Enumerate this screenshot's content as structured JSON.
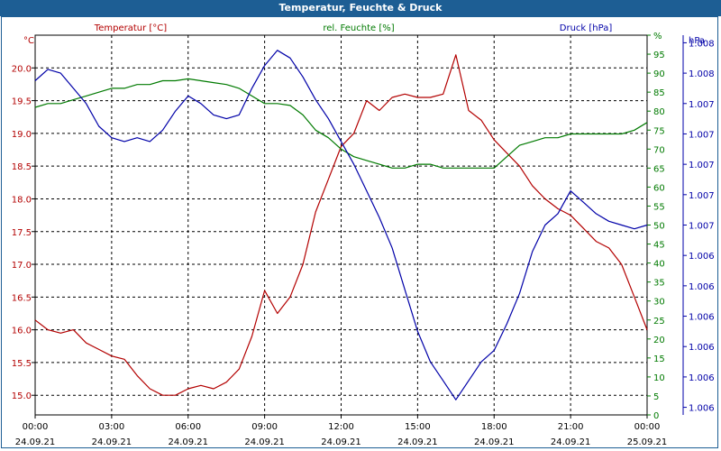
{
  "title": "Temperatur, Feuchte & Druck",
  "colors": {
    "temperature": "#b30000",
    "humidity": "#007a00",
    "pressure": "#0000a8",
    "titlebar": "#1d5e94"
  },
  "chart_data": {
    "type": "line",
    "title": "Temperatur, Feuchte & Druck",
    "x_ticks": [
      {
        "time": "00:00",
        "date": "24.09.21"
      },
      {
        "time": "03:00",
        "date": "24.09.21"
      },
      {
        "time": "06:00",
        "date": "24.09.21"
      },
      {
        "time": "09:00",
        "date": "24.09.21"
      },
      {
        "time": "12:00",
        "date": "24.09.21"
      },
      {
        "time": "15:00",
        "date": "24.09.21"
      },
      {
        "time": "18:00",
        "date": "24.09.21"
      },
      {
        "time": "21:00",
        "date": "24.09.21"
      },
      {
        "time": "00:00",
        "date": "25.09.21"
      }
    ],
    "xlim_hours": [
      0,
      24
    ],
    "grid": true,
    "axes": {
      "temperature": {
        "label": "Temperatur [°C]",
        "unit": "°C",
        "ylim": [
          14.7,
          20.5
        ],
        "ticks": [
          "15.0",
          "15.5",
          "16.0",
          "16.5",
          "17.0",
          "17.5",
          "18.0",
          "18.5",
          "19.0",
          "19.5",
          "20.0"
        ],
        "tick_values": [
          15.0,
          15.5,
          16.0,
          16.5,
          17.0,
          17.5,
          18.0,
          18.5,
          19.0,
          19.5,
          20.0
        ]
      },
      "humidity": {
        "label": "rel. Feuchte [%]",
        "unit": "%",
        "ylim": [
          0,
          100
        ],
        "ticks": [
          "0",
          "5",
          "10",
          "15",
          "20",
          "25",
          "30",
          "35",
          "40",
          "45",
          "50",
          "55",
          "60",
          "65",
          "70",
          "75",
          "80",
          "85",
          "90",
          "95",
          "%"
        ],
        "tick_values": [
          0,
          5,
          10,
          15,
          20,
          25,
          30,
          35,
          40,
          45,
          50,
          55,
          60,
          65,
          70,
          75,
          80,
          85,
          90,
          95,
          100
        ]
      },
      "pressure": {
        "label": "Druck [hPa]",
        "unit": "hPa",
        "ylim": [
          0,
          100
        ],
        "ticks": [
          "1.006",
          "1.006",
          "1.006",
          "1.006",
          "1.006",
          "1.006",
          "1.007",
          "1.007",
          "1.007",
          "1.007",
          "1.007",
          "1.008",
          "1.008",
          "1.008"
        ],
        "tick_values": [
          2.0,
          10.0,
          18.0,
          26.0,
          34.0,
          42.0,
          50.0,
          58.0,
          66.0,
          74.0,
          82.0,
          90.0,
          98.0,
          106.0
        ]
      }
    },
    "series": [
      {
        "name": "Temperatur [°C]",
        "axis": "temperature",
        "x": [
          0,
          0.5,
          1,
          1.5,
          2,
          2.5,
          3,
          3.5,
          4,
          4.5,
          5,
          5.5,
          6,
          6.5,
          7,
          7.5,
          8,
          8.5,
          9,
          9.5,
          10,
          10.5,
          11,
          11.5,
          12,
          12.5,
          13,
          13.5,
          14,
          14.5,
          15,
          15.5,
          16,
          16.5,
          17,
          17.5,
          18,
          18.5,
          19,
          19.5,
          20,
          20.5,
          21,
          21.5,
          22,
          22.5,
          23,
          23.5,
          24
        ],
        "values": [
          16.15,
          16.0,
          15.95,
          16.0,
          15.8,
          15.7,
          15.6,
          15.55,
          15.3,
          15.1,
          15.0,
          15.0,
          15.1,
          15.15,
          15.1,
          15.2,
          15.4,
          15.9,
          16.6,
          16.25,
          16.5,
          17.0,
          17.8,
          18.3,
          18.8,
          19.0,
          19.5,
          19.35,
          19.55,
          19.6,
          19.55,
          19.55,
          19.6,
          20.2,
          19.35,
          19.2,
          18.9,
          18.7,
          18.5,
          18.2,
          18.0,
          17.85,
          17.75,
          17.55,
          17.35,
          17.25,
          17.0,
          16.5,
          16.0
        ]
      },
      {
        "name": "rel. Feuchte [%]",
        "axis": "humidity",
        "x": [
          0,
          0.5,
          1,
          1.5,
          2,
          2.5,
          3,
          3.5,
          4,
          4.5,
          5,
          5.5,
          6,
          6.5,
          7,
          7.5,
          8,
          8.5,
          9,
          9.5,
          10,
          10.5,
          11,
          11.5,
          12,
          12.5,
          13,
          13.5,
          14,
          14.5,
          15,
          15.5,
          16,
          16.5,
          17,
          17.5,
          18,
          18.5,
          19,
          19.5,
          20,
          20.5,
          21,
          21.5,
          22,
          22.5,
          23,
          23.5,
          24
        ],
        "values": [
          81,
          82,
          82,
          83,
          84,
          85,
          86,
          86,
          87,
          87,
          88,
          88,
          88.5,
          88,
          87.5,
          87,
          86,
          84,
          82,
          82,
          81.5,
          79,
          75,
          73,
          70,
          68,
          67,
          66,
          65,
          65,
          66,
          66,
          65,
          65,
          65,
          65,
          65,
          68,
          71,
          72,
          73,
          73,
          74,
          74,
          74,
          74,
          74,
          75,
          77
        ]
      },
      {
        "name": "Druck [hPa]",
        "axis": "pressure",
        "x": [
          0,
          0.5,
          1,
          1.5,
          2,
          2.5,
          3,
          3.5,
          4,
          4.5,
          5,
          5.5,
          6,
          6.5,
          7,
          7.5,
          8,
          8.5,
          9,
          9.5,
          10,
          10.5,
          11,
          11.5,
          12,
          12.5,
          13,
          13.5,
          14,
          14.5,
          15,
          15.5,
          16,
          16.5,
          17,
          17.5,
          18,
          18.5,
          19,
          19.5,
          20,
          20.5,
          21,
          21.5,
          22,
          22.5,
          23,
          23.5,
          24
        ],
        "values": [
          88,
          91,
          90,
          86,
          82,
          76,
          73,
          72,
          73,
          72,
          75,
          80,
          84,
          82,
          79,
          78,
          79,
          86,
          92,
          96,
          94,
          89,
          83,
          78,
          72,
          66,
          59,
          52,
          44,
          33,
          22,
          14,
          9,
          4,
          9,
          14,
          17,
          24,
          32,
          43,
          50,
          53,
          59,
          56,
          53,
          51,
          50,
          49,
          50
        ]
      }
    ]
  }
}
